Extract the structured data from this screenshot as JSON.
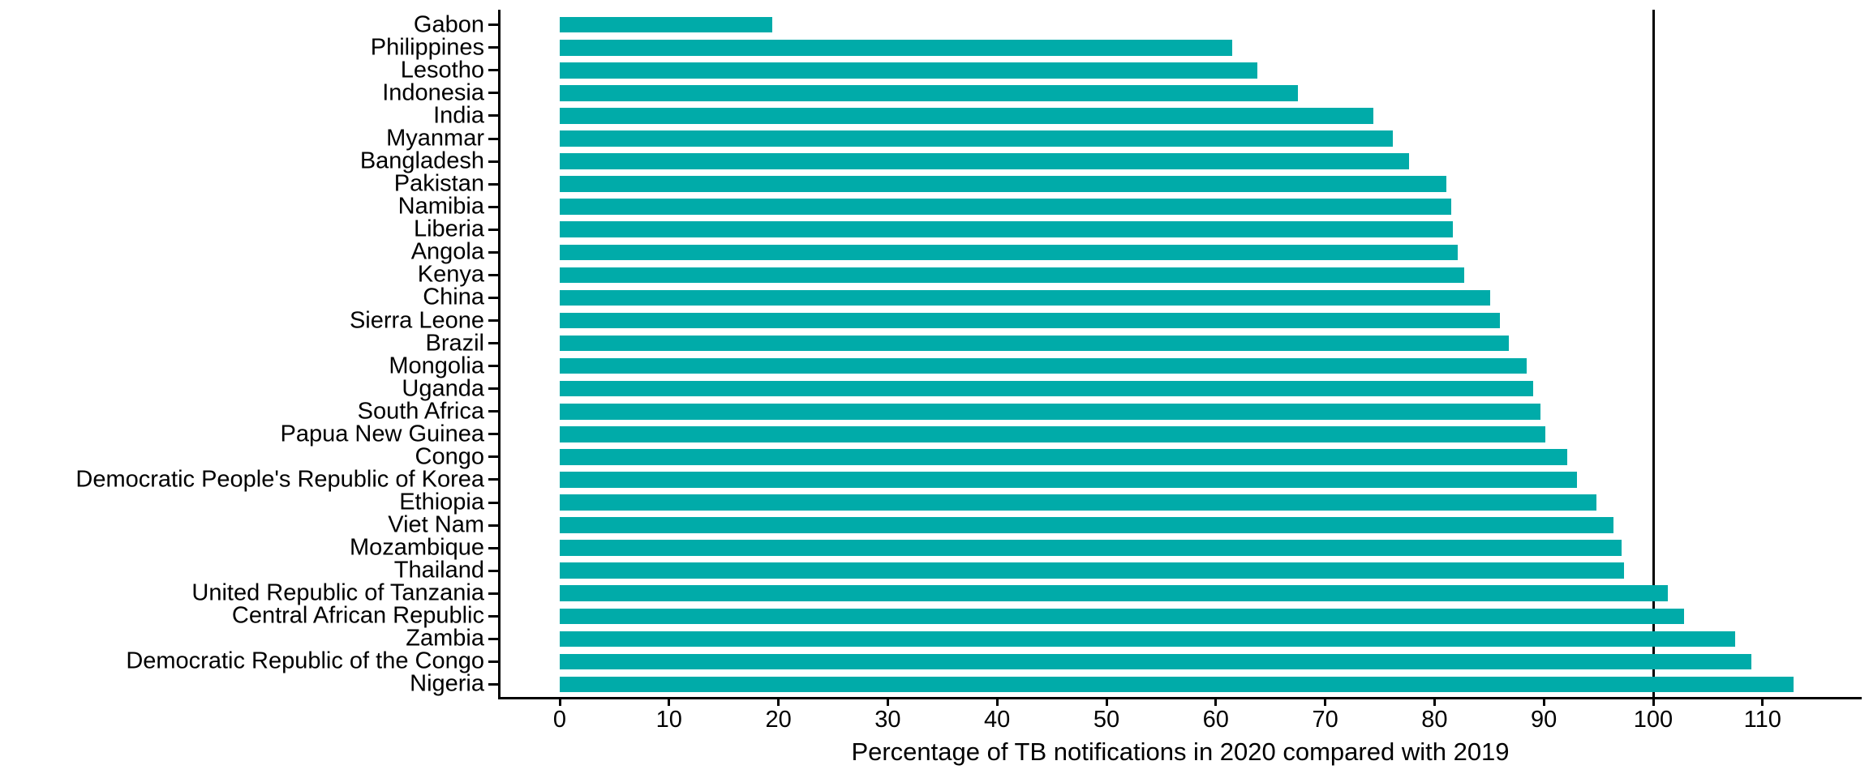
{
  "chart_data": {
    "type": "bar",
    "orientation": "horizontal",
    "title": "",
    "xlabel": "Percentage of TB notifications in 2020 compared with 2019",
    "ylabel": "",
    "categories": [
      "Gabon",
      "Philippines",
      "Lesotho",
      "Indonesia",
      "India",
      "Myanmar",
      "Bangladesh",
      "Pakistan",
      "Namibia",
      "Liberia",
      "Angola",
      "Kenya",
      "China",
      "Sierra Leone",
      "Brazil",
      "Mongolia",
      "Uganda",
      "South Africa",
      "Papua New Guinea",
      "Congo",
      "Democratic People's Republic of Korea",
      "Ethiopia",
      "Viet Nam",
      "Mozambique",
      "Thailand",
      "United Republic of Tanzania",
      "Central African Republic",
      "Zambia",
      "Democratic Republic of the Congo",
      "Nigeria"
    ],
    "values": [
      19.4,
      61.5,
      63.8,
      67.5,
      74.4,
      76.2,
      77.7,
      81.1,
      81.5,
      81.7,
      82.1,
      82.7,
      85.1,
      86.0,
      86.8,
      88.4,
      89.0,
      89.7,
      90.1,
      92.1,
      93.0,
      94.8,
      96.4,
      97.1,
      97.3,
      101.3,
      102.8,
      107.5,
      109.0,
      112.8
    ],
    "x_ticks": [
      "0",
      "10",
      "20",
      "30",
      "40",
      "50",
      "60",
      "70",
      "80",
      "90",
      "100",
      "110"
    ],
    "x_tick_values": [
      0,
      10,
      20,
      30,
      40,
      50,
      60,
      70,
      80,
      90,
      100,
      110
    ],
    "xlim": [
      -5.5,
      119
    ],
    "reference_line_x": 100,
    "bar_color": "#00ABA9",
    "axis_color": "#000000",
    "text_color": "#000000",
    "grid": false,
    "legend_position": "none"
  }
}
